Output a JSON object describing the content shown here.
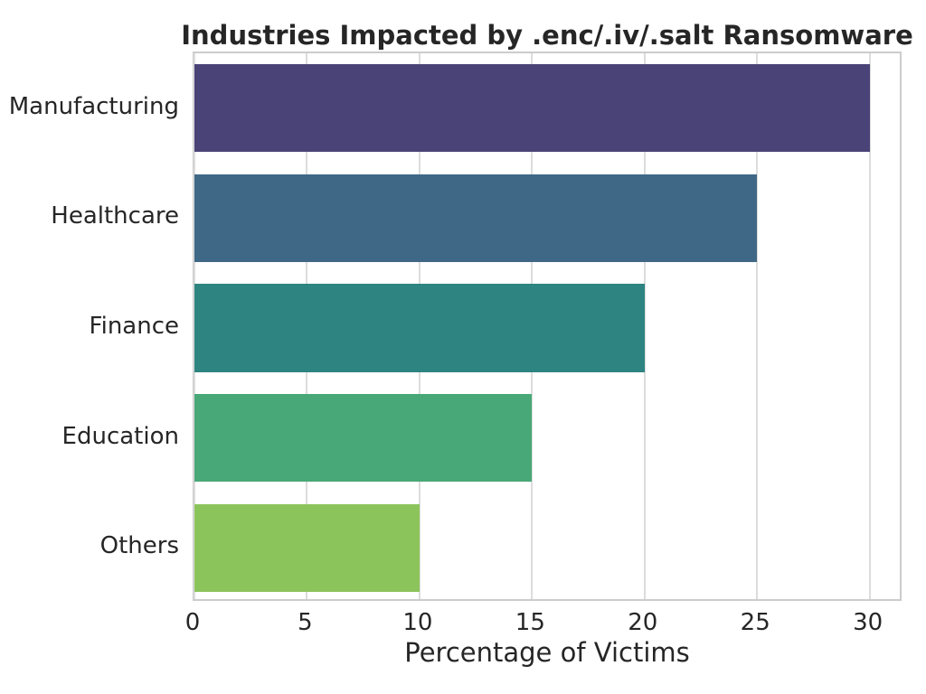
{
  "chart_data": {
    "type": "bar",
    "orientation": "horizontal",
    "title": "Industries Impacted by .enc/.iv/.salt Ransomware",
    "xlabel": "Percentage of Victims",
    "ylabel": "",
    "categories": [
      "Manufacturing",
      "Healthcare",
      "Finance",
      "Education",
      "Others"
    ],
    "values": [
      30,
      25,
      20,
      15,
      10
    ],
    "bar_colors": [
      "#4a4377",
      "#3f6886",
      "#2e8480",
      "#48a877",
      "#8cc45c"
    ],
    "x_ticks": [
      0,
      5,
      10,
      15,
      20,
      25,
      30
    ],
    "xlim": [
      0,
      31.5
    ],
    "grid": true,
    "grid_axis": "x",
    "legend": false,
    "bar_fraction_of_band": 0.8,
    "style": {
      "figure_background": "#ffffff",
      "plot_background": "#ffffff",
      "grid_color": "#dcdcdc",
      "spine_color": "#cccccc",
      "text_color": "#262626"
    }
  }
}
